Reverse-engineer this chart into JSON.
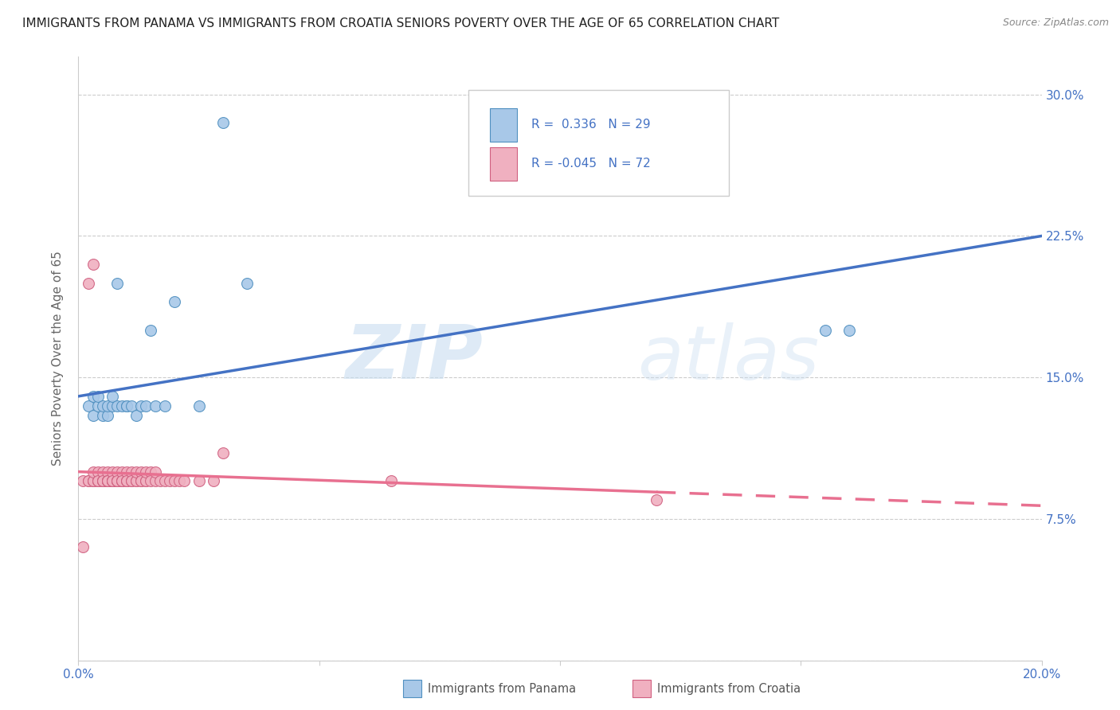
{
  "title": "IMMIGRANTS FROM PANAMA VS IMMIGRANTS FROM CROATIA SENIORS POVERTY OVER THE AGE OF 65 CORRELATION CHART",
  "source": "Source: ZipAtlas.com",
  "ylabel": "Seniors Poverty Over the Age of 65",
  "xlim": [
    0.0,
    0.2
  ],
  "ylim": [
    0.0,
    0.32
  ],
  "x_ticks": [
    0.0,
    0.05,
    0.1,
    0.15,
    0.2
  ],
  "x_tick_labels": [
    "0.0%",
    "",
    "",
    "",
    "20.0%"
  ],
  "y_ticks": [
    0.0,
    0.075,
    0.15,
    0.225,
    0.3
  ],
  "y_tick_right_labels": [
    "",
    "7.5%",
    "15.0%",
    "22.5%",
    "30.0%"
  ],
  "watermark_zip": "ZIP",
  "watermark_atlas": "atlas",
  "panama_color": "#a8c8e8",
  "panama_edge": "#5090c0",
  "croatia_color": "#f0b0c0",
  "croatia_edge": "#d06080",
  "trend_panama_color": "#4472c4",
  "trend_croatia_color": "#e87090",
  "trend_panama_y0": 0.14,
  "trend_panama_y1": 0.225,
  "trend_croatia_y0": 0.1,
  "trend_croatia_y1": 0.082,
  "trend_croatia_solid_end": 0.12,
  "panama_x": [
    0.002,
    0.003,
    0.003,
    0.004,
    0.004,
    0.005,
    0.005,
    0.006,
    0.006,
    0.007,
    0.007,
    0.008,
    0.008,
    0.009,
    0.01,
    0.01,
    0.011,
    0.012,
    0.013,
    0.014,
    0.015,
    0.016,
    0.018,
    0.02,
    0.025,
    0.03,
    0.035,
    0.155,
    0.16
  ],
  "panama_y": [
    0.135,
    0.13,
    0.14,
    0.135,
    0.14,
    0.13,
    0.135,
    0.13,
    0.135,
    0.135,
    0.14,
    0.135,
    0.2,
    0.135,
    0.135,
    0.135,
    0.135,
    0.13,
    0.135,
    0.135,
    0.175,
    0.135,
    0.135,
    0.19,
    0.135,
    0.285,
    0.2,
    0.175,
    0.175
  ],
  "croatia_x": [
    0.001,
    0.001,
    0.002,
    0.002,
    0.002,
    0.003,
    0.003,
    0.003,
    0.003,
    0.003,
    0.004,
    0.004,
    0.004,
    0.004,
    0.005,
    0.005,
    0.005,
    0.005,
    0.005,
    0.006,
    0.006,
    0.006,
    0.006,
    0.006,
    0.006,
    0.006,
    0.007,
    0.007,
    0.007,
    0.007,
    0.007,
    0.007,
    0.008,
    0.008,
    0.008,
    0.008,
    0.008,
    0.009,
    0.009,
    0.009,
    0.009,
    0.01,
    0.01,
    0.01,
    0.01,
    0.011,
    0.011,
    0.011,
    0.012,
    0.012,
    0.012,
    0.013,
    0.013,
    0.013,
    0.014,
    0.014,
    0.014,
    0.015,
    0.015,
    0.016,
    0.016,
    0.017,
    0.018,
    0.019,
    0.02,
    0.021,
    0.022,
    0.025,
    0.028,
    0.03,
    0.065,
    0.12
  ],
  "croatia_y": [
    0.095,
    0.06,
    0.095,
    0.095,
    0.2,
    0.095,
    0.095,
    0.095,
    0.21,
    0.1,
    0.095,
    0.095,
    0.1,
    0.095,
    0.095,
    0.095,
    0.095,
    0.1,
    0.095,
    0.095,
    0.095,
    0.095,
    0.1,
    0.095,
    0.095,
    0.095,
    0.095,
    0.095,
    0.095,
    0.095,
    0.1,
    0.095,
    0.095,
    0.095,
    0.095,
    0.1,
    0.095,
    0.095,
    0.095,
    0.1,
    0.095,
    0.095,
    0.095,
    0.1,
    0.095,
    0.095,
    0.1,
    0.095,
    0.095,
    0.095,
    0.1,
    0.095,
    0.1,
    0.095,
    0.095,
    0.095,
    0.1,
    0.1,
    0.095,
    0.095,
    0.1,
    0.095,
    0.095,
    0.095,
    0.095,
    0.095,
    0.095,
    0.095,
    0.095,
    0.11,
    0.095,
    0.085
  ],
  "grid_color": "#cccccc",
  "background_color": "#ffffff",
  "title_fontsize": 11,
  "axis_label_fontsize": 11,
  "tick_fontsize": 11,
  "marker_size": 100,
  "tick_color": "#4472c4"
}
